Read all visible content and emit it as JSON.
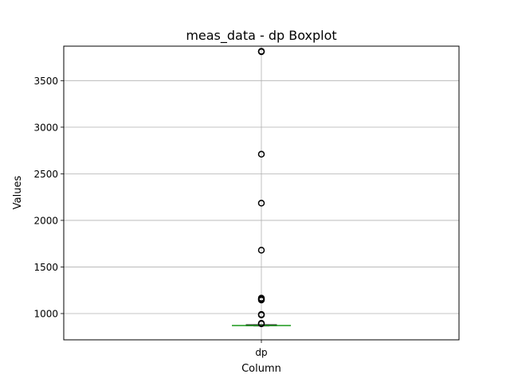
{
  "chart_data": {
    "type": "boxplot",
    "title": "meas_data - dp Boxplot",
    "xlabel": "Column",
    "ylabel": "Values",
    "categories": [
      "dp"
    ],
    "ylim": [
      718,
      3870
    ],
    "yticks": [
      1000,
      1500,
      2000,
      2500,
      3000,
      3500
    ],
    "grid": true,
    "boxes": [
      {
        "category": "dp",
        "whisker_low": 866,
        "q1": 868,
        "median": 871,
        "q3": 880,
        "whisker_high": 880,
        "outliers": [
          3815,
          3810,
          2710,
          2185,
          1680,
          1165,
          1155,
          1145,
          990,
          985,
          895,
          890
        ]
      }
    ]
  }
}
